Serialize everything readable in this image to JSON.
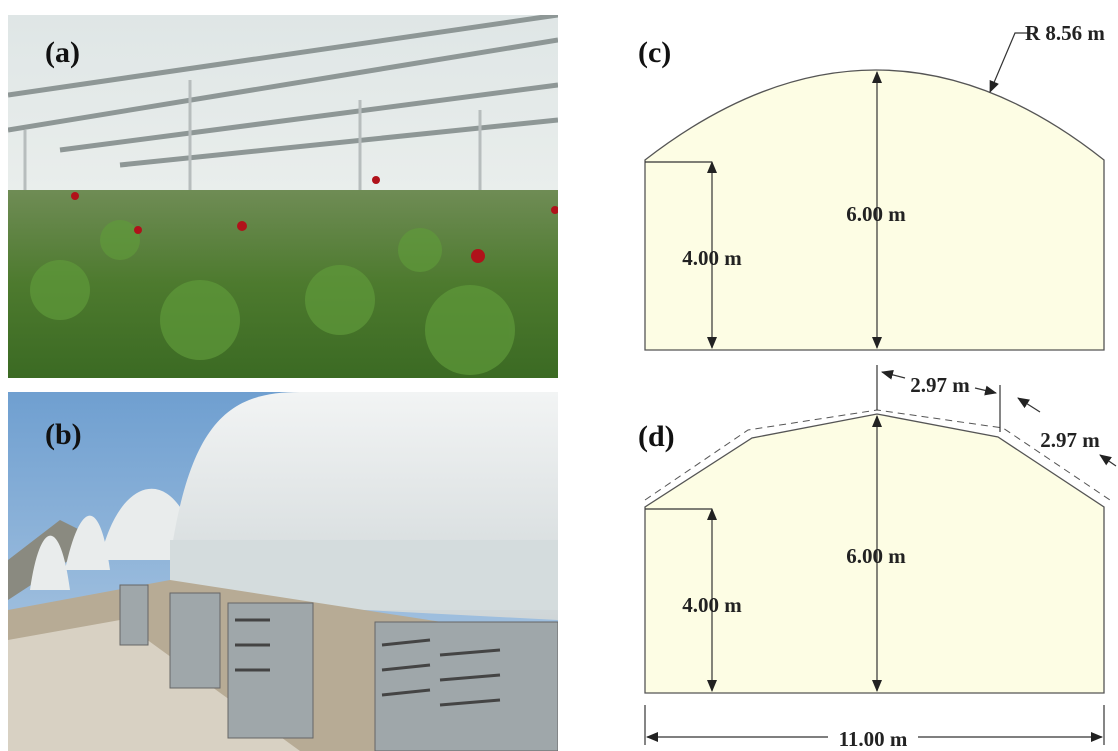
{
  "panels": [
    {
      "label": "(a)"
    },
    {
      "label": "(b)"
    },
    {
      "label": "(c)",
      "radius": "R 8.56 m",
      "ridge_height": "6.00 m",
      "wall_height": "4.00 m"
    },
    {
      "label": "(d)",
      "segment_1": "2.97 m",
      "segment_2": "2.97 m",
      "ridge_height": "6.00 m",
      "wall_height": "4.00 m",
      "width": "11.00 m"
    }
  ]
}
